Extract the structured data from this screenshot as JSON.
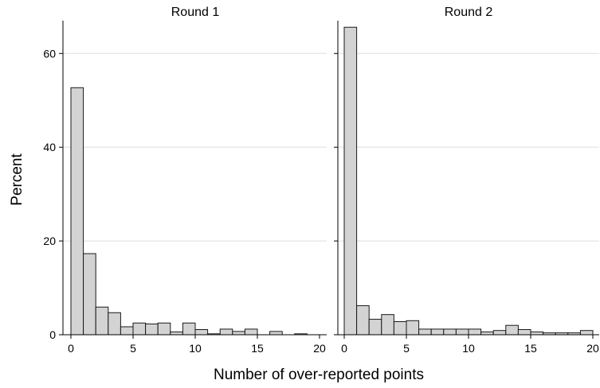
{
  "chart_data": {
    "type": "bar",
    "ylabel": "Percent",
    "xlabel": "Number of over-reported points",
    "ylim": [
      0,
      67
    ],
    "yticks": [
      0,
      20,
      40,
      60
    ],
    "xlim": [
      0,
      20
    ],
    "xticks": [
      0,
      5,
      10,
      15,
      20
    ],
    "bin_width": 1,
    "grid": true,
    "colors": {
      "bar_fill": "#d3d3d3",
      "bar_stroke": "#1a1a1a",
      "grid": "#dedede"
    },
    "panels": [
      {
        "title": "Round 1",
        "bins": [
          {
            "x0": 0,
            "value": 52.7
          },
          {
            "x0": 1,
            "value": 17.3
          },
          {
            "x0": 2,
            "value": 5.9
          },
          {
            "x0": 3,
            "value": 4.7
          },
          {
            "x0": 4,
            "value": 1.7
          },
          {
            "x0": 5,
            "value": 2.5
          },
          {
            "x0": 6,
            "value": 2.3
          },
          {
            "x0": 7,
            "value": 2.5
          },
          {
            "x0": 8,
            "value": 0.6
          },
          {
            "x0": 9,
            "value": 2.5
          },
          {
            "x0": 10,
            "value": 1.1
          },
          {
            "x0": 11,
            "value": 0.2
          },
          {
            "x0": 12,
            "value": 1.2
          },
          {
            "x0": 13,
            "value": 0.7
          },
          {
            "x0": 14,
            "value": 1.2
          },
          {
            "x0": 16,
            "value": 0.7
          },
          {
            "x0": 18,
            "value": 0.2
          }
        ]
      },
      {
        "title": "Round 2",
        "bins": [
          {
            "x0": 0,
            "value": 65.6
          },
          {
            "x0": 1,
            "value": 6.2
          },
          {
            "x0": 2,
            "value": 3.3
          },
          {
            "x0": 3,
            "value": 4.3
          },
          {
            "x0": 4,
            "value": 2.8
          },
          {
            "x0": 5,
            "value": 3.0
          },
          {
            "x0": 6,
            "value": 1.2
          },
          {
            "x0": 7,
            "value": 1.2
          },
          {
            "x0": 8,
            "value": 1.2
          },
          {
            "x0": 9,
            "value": 1.2
          },
          {
            "x0": 10,
            "value": 1.2
          },
          {
            "x0": 11,
            "value": 0.6
          },
          {
            "x0": 12,
            "value": 0.9
          },
          {
            "x0": 13,
            "value": 2.0
          },
          {
            "x0": 14,
            "value": 1.1
          },
          {
            "x0": 15,
            "value": 0.6
          },
          {
            "x0": 16,
            "value": 0.4
          },
          {
            "x0": 17,
            "value": 0.4
          },
          {
            "x0": 18,
            "value": 0.4
          },
          {
            "x0": 19,
            "value": 0.9
          }
        ]
      }
    ]
  }
}
